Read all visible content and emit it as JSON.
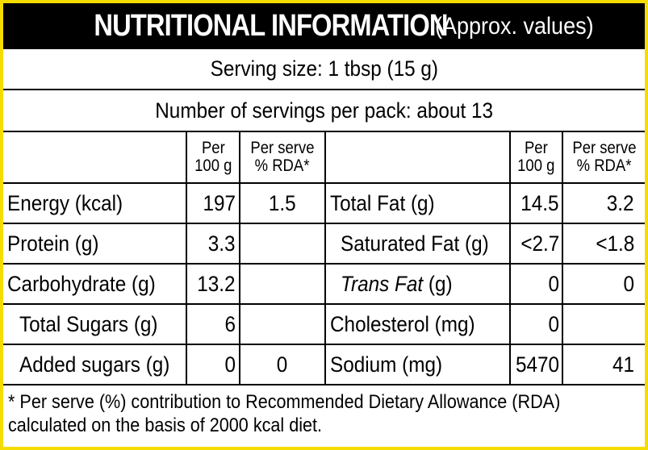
{
  "header": {
    "title": "NUTRITIONAL INFORMATION",
    "subtitle": "(Approx. values)"
  },
  "serving_size": "Serving size: 1 tbsp (15 g)",
  "servings_per_pack": "Number of servings per pack: about 13",
  "columns": {
    "per100_line1": "Per",
    "per100_line2": "100 g",
    "rda_line1": "Per serve",
    "rda_line2": "% RDA*"
  },
  "left_rows": [
    {
      "label": "Energy (kcal)",
      "per100": "197",
      "rda": "1.5"
    },
    {
      "label": "Protein (g)",
      "per100": "3.3",
      "rda": ""
    },
    {
      "label": "Carbohydrate (g)",
      "per100": "13.2",
      "rda": ""
    },
    {
      "label": "Total Sugars (g)",
      "per100": "6",
      "rda": ""
    },
    {
      "label": "Added sugars (g)",
      "per100": "0",
      "rda": "0"
    }
  ],
  "right_rows": [
    {
      "label": "Total Fat (g)",
      "per100": "14.5",
      "rda": "3.2"
    },
    {
      "label": "Saturated Fat (g)",
      "per100": "<2.7",
      "rda": "<1.8"
    },
    {
      "label_italic": "Trans Fat",
      "label_rest": " (g)",
      "per100": "0",
      "rda": "0"
    },
    {
      "label": "Cholesterol (mg)",
      "per100": "0",
      "rda": ""
    },
    {
      "label": "Sodium (mg)",
      "per100": "5470",
      "rda": "41"
    }
  ],
  "footnote": {
    "line1": "* Per serve (%) contribution to Recommended Dietary Allowance (RDA)",
    "line2": "calculated on the basis of 2000 kcal diet."
  }
}
